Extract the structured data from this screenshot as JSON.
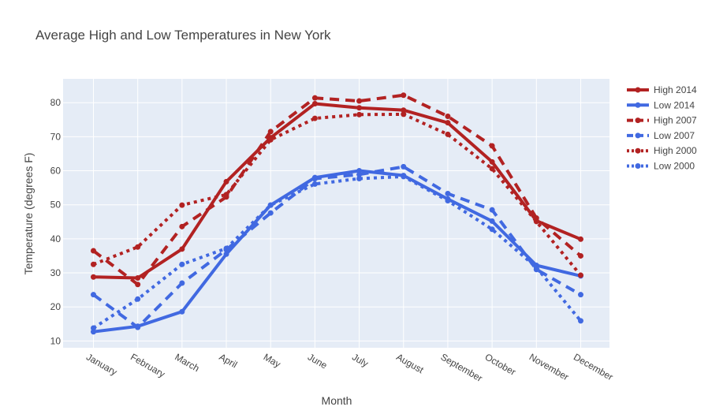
{
  "chart_data": {
    "type": "line",
    "title": "Average High and Low Temperatures in New York",
    "xlabel": "Month",
    "ylabel": "Temperature (degrees F)",
    "ylim": [
      8,
      87
    ],
    "yticks": [
      10,
      20,
      30,
      40,
      50,
      60,
      70,
      80
    ],
    "grid": true,
    "legend_position": "right",
    "categories": [
      "January",
      "February",
      "March",
      "April",
      "May",
      "June",
      "July",
      "August",
      "September",
      "October",
      "November",
      "December"
    ],
    "series": [
      {
        "name": "High 2014",
        "color": "#b22222",
        "dash": "solid",
        "values": [
          28.8,
          28.5,
          37.0,
          56.8,
          69.7,
          79.7,
          78.5,
          77.8,
          74.1,
          62.6,
          45.3,
          39.9
        ]
      },
      {
        "name": "Low 2014",
        "color": "#4169e1",
        "dash": "solid",
        "values": [
          12.7,
          14.3,
          18.6,
          35.5,
          49.9,
          58.0,
          60.0,
          58.6,
          51.7,
          45.2,
          32.2,
          29.1
        ]
      },
      {
        "name": "High 2007",
        "color": "#b22222",
        "dash": "dash",
        "values": [
          36.5,
          26.6,
          43.6,
          52.3,
          71.5,
          81.4,
          80.5,
          82.2,
          76.0,
          67.3,
          46.1,
          35.0
        ]
      },
      {
        "name": "Low 2007",
        "color": "#4169e1",
        "dash": "dash",
        "values": [
          23.6,
          14.0,
          27.0,
          36.8,
          47.6,
          57.7,
          58.9,
          61.2,
          53.3,
          48.5,
          31.0,
          23.6
        ]
      },
      {
        "name": "High 2000",
        "color": "#b22222",
        "dash": "dot",
        "values": [
          32.5,
          37.6,
          49.9,
          53.0,
          69.1,
          75.4,
          76.5,
          76.6,
          70.7,
          60.6,
          45.1,
          29.3
        ]
      },
      {
        "name": "Low 2000",
        "color": "#4169e1",
        "dash": "dot",
        "values": [
          13.8,
          22.3,
          32.5,
          37.2,
          49.9,
          56.1,
          57.7,
          58.3,
          51.2,
          42.8,
          31.6,
          15.9
        ]
      }
    ]
  }
}
